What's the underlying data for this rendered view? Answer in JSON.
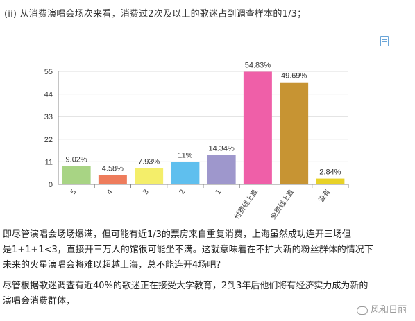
{
  "intro": "(ii) 从消费演唱会场次来看，消费过2次及以上的歌迷占到调查样本的1/3；",
  "icon": "document-icon",
  "chart_data": {
    "type": "bar",
    "categories": [
      "5",
      "4",
      "3",
      "2",
      "1",
      "付费线上直",
      "免费线上直",
      "没有"
    ],
    "values": [
      9.02,
      4.58,
      7.93,
      11,
      14.34,
      54.83,
      49.69,
      2.84
    ],
    "data_labels": [
      "9.02%",
      "4.58%",
      "7.93%",
      "11%",
      "14.34%",
      "54.83%",
      "49.69%",
      "2.84%"
    ],
    "colors": [
      "#a8d484",
      "#ee7c5c",
      "#f4ee6a",
      "#5fbfee",
      "#9e97cc",
      "#ef5fa8",
      "#c79433",
      "#e8d227"
    ],
    "y_ticks": [
      0,
      11,
      22,
      33,
      44,
      55
    ],
    "ylim": [
      0,
      55
    ],
    "grid": true
  },
  "paragraphs": [
    "即尽管演唱会场场爆满，但可能有近1/3的票房来自重复消费，上海虽然成功连开三场但",
    "是1+1+1<3，直接开三万人的馆很可能坐不满。这就意味着在不扩大新的粉丝群体的情况下",
    "未来的火星演唱会将难以超越上海，总不能连开4场吧？",
    "尽管根据歌迷调查有近40%的歌迷正在接受大学教育，2到3年后他们将有经济实力成为新的",
    "演唱会消费群体，"
  ],
  "watermark": "风和日丽"
}
